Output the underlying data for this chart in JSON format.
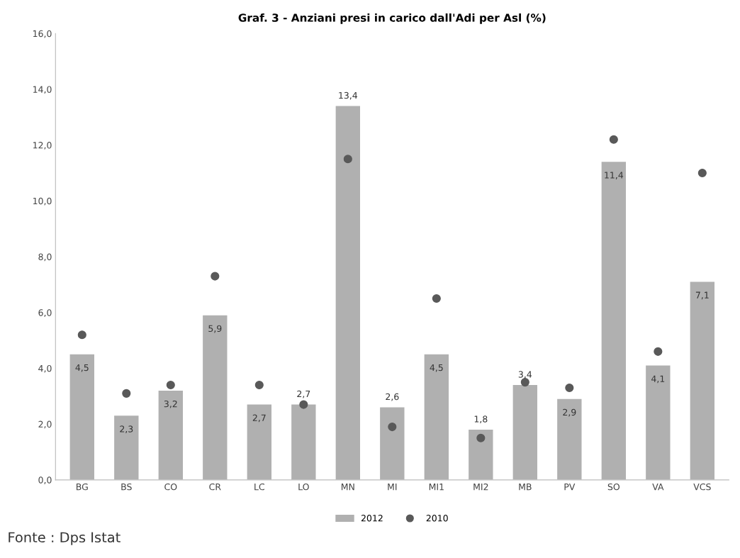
{
  "chart_data": {
    "type": "bar",
    "title": "Graf. 3 - Anziani presi in carico dall'Adi per Asl (%)",
    "categories": [
      "BG",
      "BS",
      "CO",
      "CR",
      "LC",
      "LO",
      "MN",
      "MI",
      "MI1",
      "MI2",
      "MB",
      "PV",
      "SO",
      "VA",
      "VCS"
    ],
    "series": [
      {
        "name": "2012",
        "color": "#b0b0b0",
        "values": [
          4.5,
          2.3,
          3.2,
          5.9,
          2.7,
          2.7,
          13.4,
          2.6,
          4.5,
          1.8,
          3.4,
          2.9,
          11.4,
          4.1,
          7.1
        ],
        "value_labels": [
          "4,5",
          "2,3",
          "3,2",
          "5,9",
          "2,7",
          "2,7",
          "13,4",
          "2,6",
          "4,5",
          "1,8",
          "3,4",
          "2,9",
          "11,4",
          "4,1",
          "7,1"
        ]
      },
      {
        "name": "2010",
        "type": "scatter",
        "color": "#595959",
        "values": [
          5.2,
          3.1,
          3.4,
          7.3,
          3.4,
          2.7,
          11.5,
          1.9,
          6.5,
          1.5,
          3.5,
          3.3,
          12.2,
          4.6,
          11.0
        ]
      }
    ],
    "ylim": [
      0,
      16
    ],
    "yticks": [
      {
        "value": 0,
        "label": "0,0"
      },
      {
        "value": 2,
        "label": "2,0"
      },
      {
        "value": 4,
        "label": "4,0"
      },
      {
        "value": 6,
        "label": "6,0"
      },
      {
        "value": 8,
        "label": "8,0"
      },
      {
        "value": 10,
        "label": "10,0"
      },
      {
        "value": 12,
        "label": "12,0"
      },
      {
        "value": 14,
        "label": "14,0"
      },
      {
        "value": 16,
        "label": "16,0"
      }
    ],
    "legend": "bottom",
    "marker": "circle",
    "annotations": [
      "Fonte : Dps Istat"
    ]
  }
}
